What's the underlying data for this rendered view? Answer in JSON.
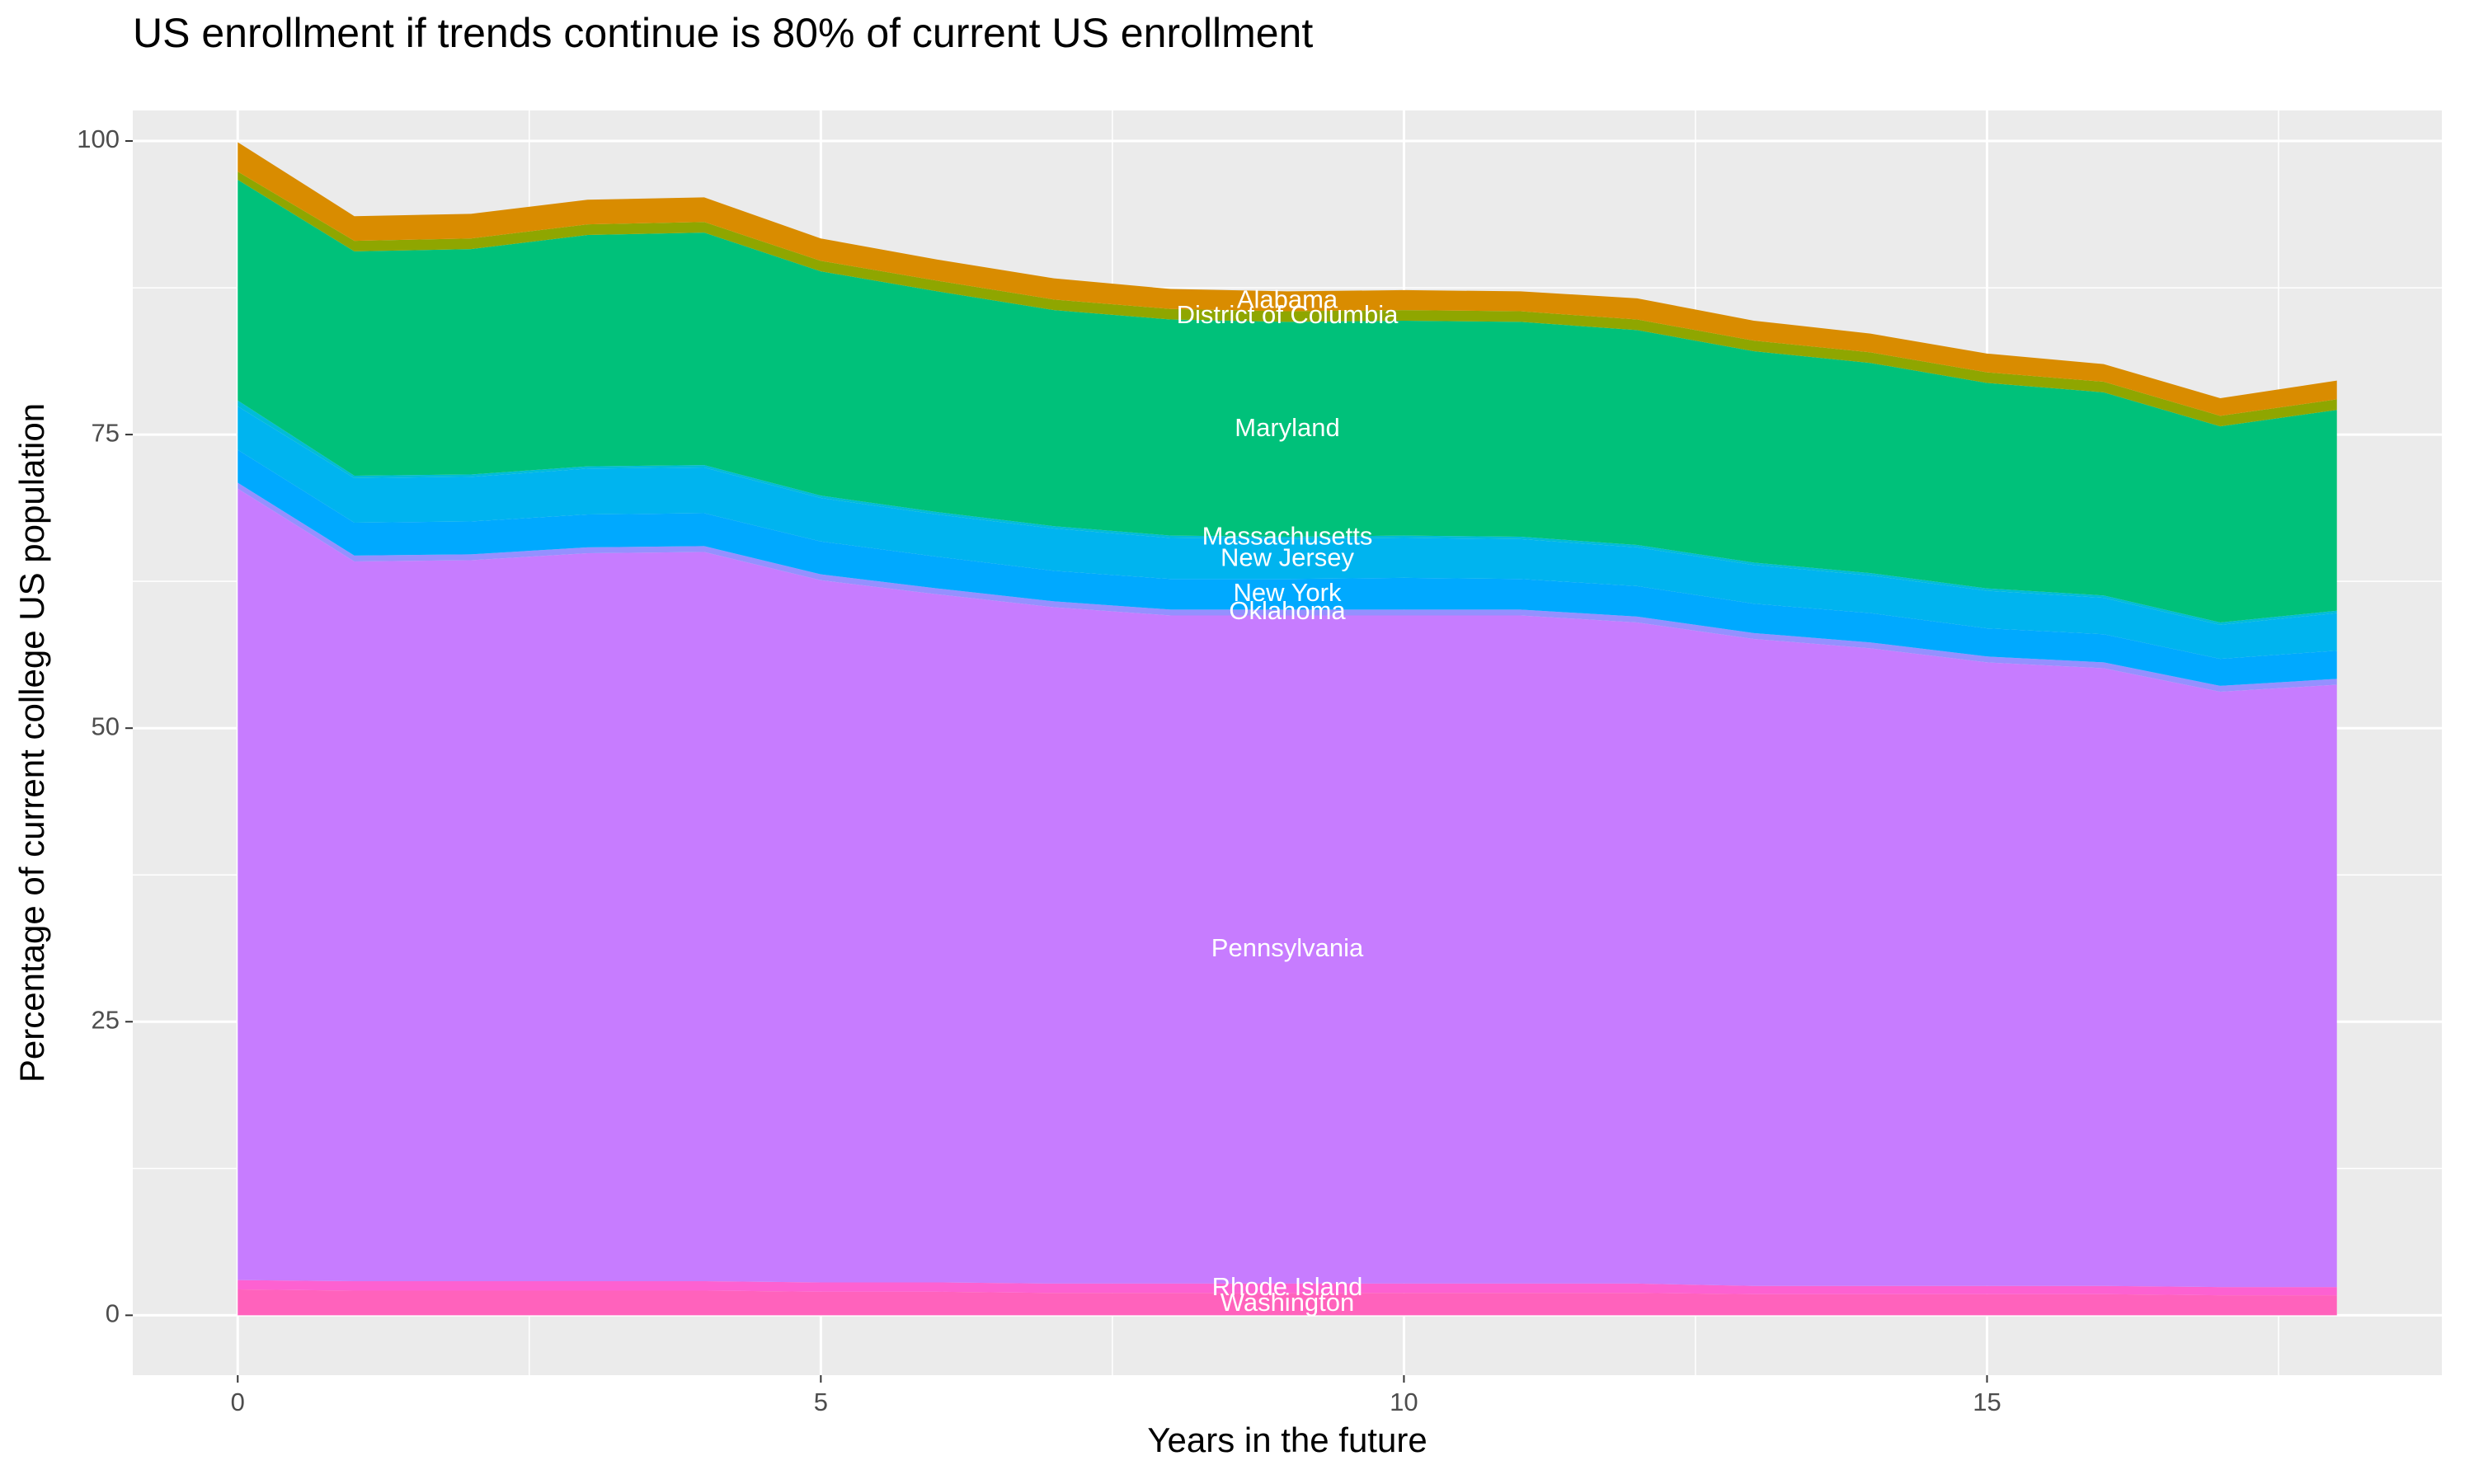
{
  "chart_data": {
    "type": "stacked_area",
    "title": "US enrollment if trends continue is 80% of current US enrollment",
    "x_label": "Years in the future",
    "y_label": "Percentage of current college US population",
    "x": [
      0,
      1,
      2,
      3,
      4,
      5,
      6,
      7,
      8,
      9,
      10,
      11,
      12,
      13,
      14,
      15,
      16,
      17,
      18
    ],
    "series": [
      {
        "name": "Washington",
        "color": "#ff62bc",
        "values": [
          2.2,
          2.1,
          2.1,
          2.1,
          2.1,
          2.0,
          2.0,
          1.9,
          1.9,
          1.9,
          1.9,
          1.9,
          1.9,
          1.8,
          1.8,
          1.8,
          1.8,
          1.7,
          1.7
        ]
      },
      {
        "name": "Rhode Island",
        "color": "#fd61d1",
        "values": [
          0.8,
          0.8,
          0.8,
          0.8,
          0.8,
          0.8,
          0.8,
          0.8,
          0.8,
          0.8,
          0.8,
          0.8,
          0.8,
          0.7,
          0.7,
          0.7,
          0.7,
          0.7,
          0.7
        ]
      },
      {
        "name": "Pennsylvania",
        "color": "#c77cff",
        "values": [
          67.4,
          61.3,
          61.4,
          62.0,
          62.1,
          59.8,
          58.6,
          57.6,
          56.9,
          56.9,
          56.9,
          56.9,
          56.3,
          55.1,
          54.3,
          53.1,
          52.6,
          50.7,
          51.3
        ]
      },
      {
        "name": "Oklahoma",
        "color": "#9590ff",
        "values": [
          0.5,
          0.5,
          0.5,
          0.5,
          0.5,
          0.5,
          0.5,
          0.5,
          0.5,
          0.5,
          0.5,
          0.5,
          0.5,
          0.5,
          0.5,
          0.5,
          0.5,
          0.5,
          0.5
        ]
      },
      {
        "name": "New York",
        "color": "#00a9ff",
        "values": [
          2.8,
          2.8,
          2.8,
          2.8,
          2.8,
          2.8,
          2.7,
          2.6,
          2.6,
          2.6,
          2.7,
          2.6,
          2.6,
          2.5,
          2.5,
          2.4,
          2.4,
          2.3,
          2.4
        ]
      },
      {
        "name": "New Jersey",
        "color": "#00b4ef",
        "values": [
          3.7,
          3.8,
          3.8,
          3.9,
          3.9,
          3.7,
          3.6,
          3.6,
          3.5,
          3.4,
          3.4,
          3.4,
          3.3,
          3.3,
          3.2,
          3.2,
          3.1,
          2.9,
          3.2
        ]
      },
      {
        "name": "Massachusetts",
        "color": "#00bcd8",
        "values": [
          0.5,
          0.2,
          0.2,
          0.2,
          0.2,
          0.2,
          0.2,
          0.2,
          0.2,
          0.2,
          0.2,
          0.2,
          0.2,
          0.2,
          0.2,
          0.2,
          0.2,
          0.2,
          0.2
        ]
      },
      {
        "name": "Maryland",
        "color": "#00c17a",
        "values": [
          18.8,
          19.1,
          19.2,
          19.7,
          19.8,
          19.1,
          18.8,
          18.4,
          18.4,
          18.3,
          18.3,
          18.3,
          18.3,
          18.0,
          17.9,
          17.5,
          17.3,
          16.7,
          17.1
        ]
      },
      {
        "name": "District of Columbia",
        "color": "#8fa600",
        "values": [
          0.7,
          0.9,
          0.9,
          0.9,
          0.9,
          0.9,
          0.9,
          0.9,
          0.9,
          0.9,
          0.9,
          0.9,
          0.9,
          0.9,
          0.9,
          0.9,
          0.9,
          0.9,
          0.9
        ]
      },
      {
        "name": "Alabama",
        "color": "#d98c00",
        "values": [
          2.5,
          2.1,
          2.1,
          2.1,
          2.1,
          1.9,
          1.8,
          1.8,
          1.7,
          1.7,
          1.7,
          1.7,
          1.8,
          1.7,
          1.6,
          1.6,
          1.5,
          1.5,
          1.6
        ]
      }
    ],
    "xlim": [
      -0.9,
      18.9
    ],
    "ylim": [
      -5.1,
      102.6
    ],
    "xticks": [
      0,
      5,
      10,
      15
    ],
    "yticks": [
      0,
      25,
      50,
      75,
      100
    ],
    "grid": true
  }
}
